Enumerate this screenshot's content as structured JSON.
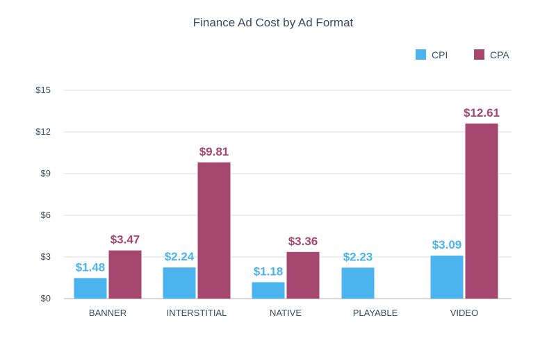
{
  "chart_data": {
    "type": "bar",
    "title": "Finance Ad Cost by Ad Format",
    "categories": [
      "BANNER",
      "INTERSTITIAL",
      "NATIVE",
      "PLAYABLE",
      "VIDEO"
    ],
    "series": [
      {
        "name": "CPI",
        "color": "#4bb4ee",
        "values": [
          1.48,
          2.24,
          1.18,
          2.23,
          3.09
        ],
        "labels": [
          "$1.48",
          "$2.24",
          "$1.18",
          "$2.23",
          "$3.09"
        ]
      },
      {
        "name": "CPA",
        "color": "#a5476f",
        "values": [
          3.47,
          9.81,
          3.36,
          null,
          12.61
        ],
        "labels": [
          "$3.47",
          "$9.81",
          "$3.36",
          "",
          "$12.61"
        ]
      }
    ],
    "yticks": [
      0,
      3,
      6,
      9,
      12,
      15
    ],
    "ytick_labels": [
      "$0",
      "$3",
      "$6",
      "$9",
      "$12",
      "$15"
    ],
    "ylim": [
      0,
      15
    ],
    "grid": true,
    "legend_position": "top-right"
  }
}
